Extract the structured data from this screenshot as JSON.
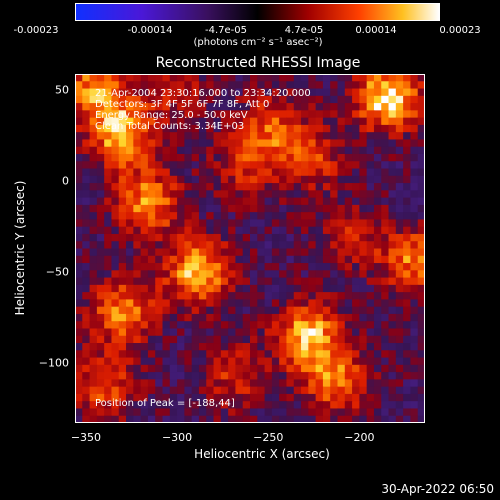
{
  "colorbar": {
    "ticks": [
      "-0.00023",
      "-0.00014",
      "-4.7e-05",
      "4.7e-05",
      "0.00014",
      "0.00023"
    ],
    "unit_label": "(photons cm⁻² s⁻¹ asec⁻²)"
  },
  "annotations": {
    "time_range": "21-Apr-2004 23:30:16.000 to 23:34:20.000",
    "detectors": "Detectors: 3F 4F 5F 6F 7F 8F, Att 0",
    "energy_range": "Energy Range: 25.0 - 50.0 keV",
    "method_counts": "Clean    Total Counts: 3.34E+03",
    "peak_position": "Position of Peak = [-188,44]"
  },
  "chart_data": {
    "type": "heatmap",
    "title": "Reconstructed RHESSI Image",
    "xlabel": "Heliocentric X (arcsec)",
    "ylabel": "Heliocentric Y (arcsec)",
    "xlim": [
      -356,
      -164
    ],
    "ylim": [
      -133,
      59
    ],
    "x_ticks": [
      -350,
      -300,
      -250,
      -200
    ],
    "x_tick_labels": [
      "−350",
      "−300",
      "−250",
      "−200"
    ],
    "y_ticks": [
      50,
      0,
      -50,
      -100
    ],
    "y_tick_labels": [
      "50",
      "0",
      "−50",
      "−100"
    ],
    "colorbar_range": [
      -0.00023,
      0.00023
    ],
    "colormap": "blue-purple-red-yellow-white",
    "grid": false,
    "peak_position": [
      -188,
      44
    ],
    "hotspots": [
      {
        "x": -184,
        "y": 46,
        "value": 0.00023
      },
      {
        "x": -330,
        "y": 26,
        "value": 0.0002
      },
      {
        "x": -346,
        "y": 52,
        "value": 0.00016
      },
      {
        "x": -316,
        "y": -12,
        "value": 0.00017
      },
      {
        "x": -288,
        "y": -50,
        "value": 0.0002
      },
      {
        "x": -330,
        "y": -72,
        "value": 0.00016
      },
      {
        "x": -228,
        "y": -85,
        "value": 0.0002
      },
      {
        "x": -212,
        "y": -110,
        "value": 0.00015
      },
      {
        "x": -170,
        "y": -44,
        "value": 0.00016
      },
      {
        "x": -248,
        "y": 30,
        "value": 0.00012
      },
      {
        "x": -262,
        "y": 8,
        "value": 0.0001
      },
      {
        "x": -340,
        "y": -112,
        "value": 0.00013
      },
      {
        "x": -268,
        "y": -108,
        "value": 0.0001
      },
      {
        "x": -226,
        "y": 12,
        "value": 0.00011
      },
      {
        "x": -205,
        "y": -30,
        "value": 9e-05
      },
      {
        "x": -300,
        "y": 50,
        "value": 8e-05
      }
    ]
  },
  "footer": {
    "timestamp": "30-Apr-2022 06:50"
  }
}
